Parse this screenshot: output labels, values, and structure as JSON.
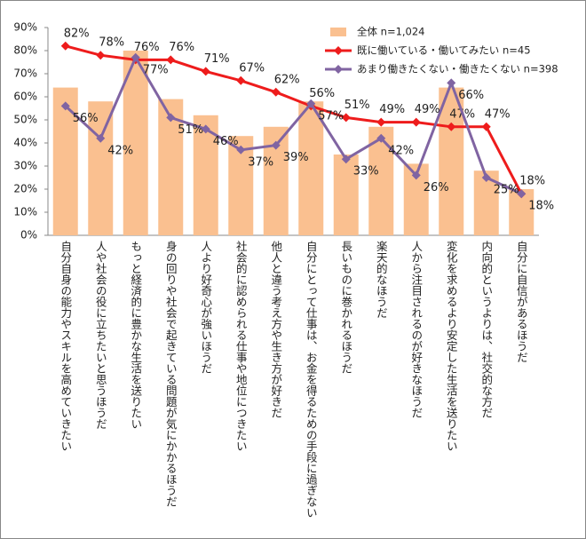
{
  "chart_data": {
    "type": "bar-line",
    "categories": [
      "自分自身の能力やスキルを高めていきたい",
      "人や社会の役に立ちたいと思うほうだ",
      "もっと経済的に豊かな生活を送りたい",
      "身の回りや社会で起きている問題が気にかかるほうだ",
      "人より好奇心が強いほうだ",
      "社会的に認められる仕事や地位につきたい",
      "他人と違う考え方や生き方が好きだ",
      "自分にとって仕事は、お金を得るための手段に過ぎない",
      "長いものに巻かれるほうだ",
      "楽天的なほうだ",
      "人から注目されるのが好きなほうだ",
      "変化を求めるより安定した生活を送りたい",
      "内向的というよりは、社交的な方だ",
      "自分に自信があるほうだ"
    ],
    "series": [
      {
        "name": "全体 n=1,024",
        "type": "bar",
        "color": "#fac090",
        "values": [
          64,
          58,
          80,
          59,
          52,
          43,
          47,
          58,
          35,
          47,
          31,
          64,
          28,
          20
        ]
      },
      {
        "name": "既に働いている・働いてみたい n=45",
        "type": "line",
        "color": "#ee1c1c",
        "values": [
          82,
          78,
          76,
          76,
          71,
          67,
          62,
          56,
          51,
          49,
          49,
          47,
          47,
          18
        ],
        "value_labels": [
          "82%",
          "78%",
          "76%",
          "76%",
          "71%",
          "67%",
          "62%",
          "56%",
          "51%",
          "49%",
          "49%",
          "47%",
          "47%",
          "18%"
        ]
      },
      {
        "name": "あまり働きたくない・働きたくない n=398",
        "type": "line",
        "color": "#8064a2",
        "values": [
          56,
          42,
          77,
          51,
          46,
          37,
          39,
          57,
          33,
          42,
          26,
          66,
          25,
          18
        ],
        "value_labels": [
          "56%",
          "42%",
          "77%",
          "51%",
          "46%",
          "37%",
          "39%",
          "57%",
          "33%",
          "42%",
          "26%",
          "66%",
          "25%",
          "18%"
        ]
      }
    ],
    "ylim": [
      0,
      90
    ],
    "yticks": [
      {
        "value": 0,
        "label": "0%"
      },
      {
        "value": 10,
        "label": "10%"
      },
      {
        "value": 20,
        "label": "20%"
      },
      {
        "value": 30,
        "label": "30%"
      },
      {
        "value": 40,
        "label": "40%"
      },
      {
        "value": 50,
        "label": "50%"
      },
      {
        "value": 60,
        "label": "60%"
      },
      {
        "value": 70,
        "label": "70%"
      },
      {
        "value": 80,
        "label": "80%"
      },
      {
        "value": 90,
        "label": "90%"
      }
    ],
    "legend": "upper right"
  }
}
